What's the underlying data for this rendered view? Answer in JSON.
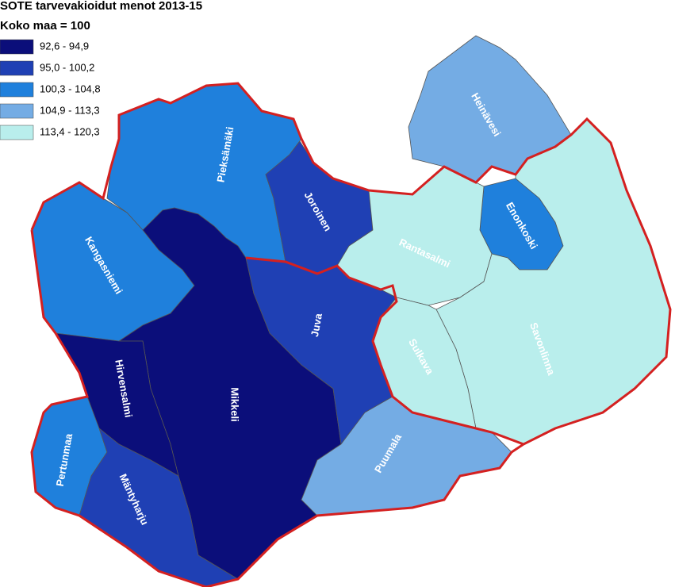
{
  "title": "SOTE tarvevakioidut menot 2013-15",
  "subtitle": "Koko maa = 100",
  "legend": [
    {
      "label": "92,6 - 94,9",
      "color": "#0b0e7a"
    },
    {
      "label": "95,0 - 100,2",
      "color": "#1f40b4"
    },
    {
      "label": "100,3 - 104,8",
      "color": "#1f80dc"
    },
    {
      "label": "104,9 - 113,3",
      "color": "#74ace4"
    },
    {
      "label": "113,4 - 120,3",
      "color": "#b9eeec"
    }
  ],
  "regions": [
    {
      "name": "Pieksämäki",
      "color": "#1f80dc"
    },
    {
      "name": "Joroinen",
      "color": "#1f40b4"
    },
    {
      "name": "Kangasniemi",
      "color": "#1f80dc"
    },
    {
      "name": "Mikkeli",
      "color": "#0b0e7a"
    },
    {
      "name": "Hirvensalmi",
      "color": "#0b0e7a"
    },
    {
      "name": "Juva",
      "color": "#1f40b4"
    },
    {
      "name": "Heinävesi",
      "color": "#74ace4"
    },
    {
      "name": "Enonkoski",
      "color": "#1f80dc"
    },
    {
      "name": "Rantasalmi",
      "color": "#b9eeec"
    },
    {
      "name": "Savonlinna",
      "color": "#b9eeec"
    },
    {
      "name": "Sulkava",
      "color": "#b9eeec"
    },
    {
      "name": "Puumala",
      "color": "#74ace4"
    },
    {
      "name": "Pertunmaa",
      "color": "#1f80dc"
    },
    {
      "name": "Mäntyharju",
      "color": "#1f40b4"
    }
  ]
}
